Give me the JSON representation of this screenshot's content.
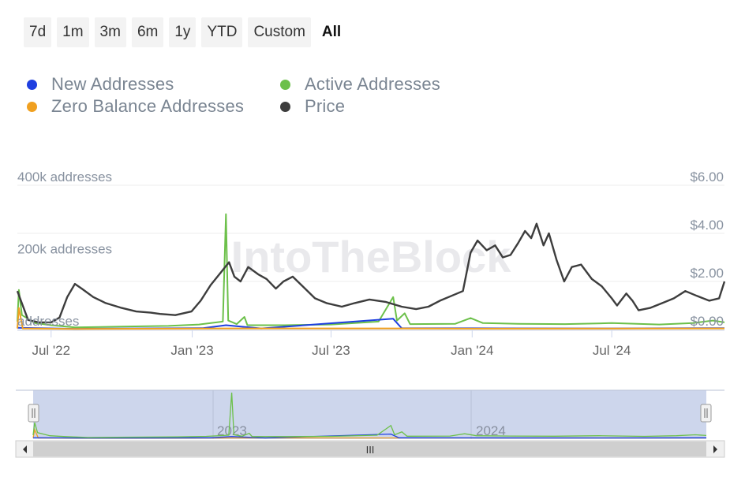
{
  "range_selector": {
    "buttons": [
      "7d",
      "1m",
      "3m",
      "6m",
      "1y",
      "YTD",
      "Custom",
      "All"
    ],
    "selected": "All"
  },
  "legend": [
    {
      "label": "New Addresses",
      "color": "#1f3fe0"
    },
    {
      "label": "Active Addresses",
      "color": "#6cc04a"
    },
    {
      "label": "Zero Balance Addresses",
      "color": "#f0a020"
    },
    {
      "label": "Price",
      "color": "#3d3d3d"
    }
  ],
  "watermark": "IntoTheBlock",
  "navigator": {
    "year_labels": [
      "2023",
      "2024"
    ],
    "scroll_grip": "III"
  },
  "chart_data": {
    "type": "line",
    "x_ticks": [
      "Jul '22",
      "Jan '23",
      "Jul '23",
      "Jan '24",
      "Jul '24"
    ],
    "left_axis": {
      "ticks": [
        "400k addresses",
        "200k addresses",
        "addresses"
      ],
      "range": [
        0,
        400000
      ]
    },
    "right_axis": {
      "ticks": [
        "$6.00",
        "$4.00",
        "$2.00",
        "$0.00"
      ],
      "range": [
        0,
        6
      ]
    },
    "x_range": [
      "2022-05-18",
      "2024-11-25"
    ],
    "series": [
      {
        "name": "Price",
        "axis": "right",
        "color": "#3d3d3d",
        "points": [
          [
            "2022-05-18",
            1.6
          ],
          [
            "2022-05-25",
            1.0
          ],
          [
            "2022-06-01",
            0.4
          ],
          [
            "2022-06-15",
            0.3
          ],
          [
            "2022-07-01",
            0.3
          ],
          [
            "2022-07-12",
            0.5
          ],
          [
            "2022-07-22",
            1.35
          ],
          [
            "2022-08-01",
            1.9
          ],
          [
            "2022-08-10",
            1.7
          ],
          [
            "2022-08-25",
            1.35
          ],
          [
            "2022-09-10",
            1.1
          ],
          [
            "2022-10-01",
            0.9
          ],
          [
            "2022-10-20",
            0.75
          ],
          [
            "2022-11-08",
            0.7
          ],
          [
            "2022-11-20",
            0.65
          ],
          [
            "2022-12-10",
            0.6
          ],
          [
            "2022-12-31",
            0.75
          ],
          [
            "2023-01-12",
            1.2
          ],
          [
            "2023-01-25",
            1.85
          ],
          [
            "2023-02-08",
            2.4
          ],
          [
            "2023-02-18",
            2.8
          ],
          [
            "2023-02-25",
            2.2
          ],
          [
            "2023-03-05",
            2.0
          ],
          [
            "2023-03-15",
            2.6
          ],
          [
            "2023-03-28",
            2.3
          ],
          [
            "2023-04-08",
            2.1
          ],
          [
            "2023-04-20",
            1.7
          ],
          [
            "2023-04-30",
            2.0
          ],
          [
            "2023-05-12",
            2.2
          ],
          [
            "2023-05-25",
            1.8
          ],
          [
            "2023-06-10",
            1.3
          ],
          [
            "2023-06-25",
            1.1
          ],
          [
            "2023-07-15",
            0.95
          ],
          [
            "2023-08-01",
            1.1
          ],
          [
            "2023-08-20",
            1.25
          ],
          [
            "2023-09-10",
            1.15
          ],
          [
            "2023-10-01",
            0.95
          ],
          [
            "2023-10-20",
            0.85
          ],
          [
            "2023-11-05",
            0.95
          ],
          [
            "2023-11-20",
            1.2
          ],
          [
            "2023-12-05",
            1.4
          ],
          [
            "2023-12-20",
            1.6
          ],
          [
            "2023-12-30",
            3.2
          ],
          [
            "2024-01-08",
            3.7
          ],
          [
            "2024-01-20",
            3.3
          ],
          [
            "2024-01-31",
            3.5
          ],
          [
            "2024-02-10",
            3.0
          ],
          [
            "2024-02-20",
            3.1
          ],
          [
            "2024-03-01",
            3.6
          ],
          [
            "2024-03-10",
            4.1
          ],
          [
            "2024-03-18",
            3.8
          ],
          [
            "2024-03-25",
            4.4
          ],
          [
            "2024-04-03",
            3.5
          ],
          [
            "2024-04-10",
            4.0
          ],
          [
            "2024-04-20",
            2.9
          ],
          [
            "2024-04-30",
            2.0
          ],
          [
            "2024-05-10",
            2.6
          ],
          [
            "2024-05-22",
            2.7
          ],
          [
            "2024-06-05",
            2.1
          ],
          [
            "2024-06-18",
            1.8
          ],
          [
            "2024-07-01",
            1.3
          ],
          [
            "2024-07-08",
            1.0
          ],
          [
            "2024-07-20",
            1.5
          ],
          [
            "2024-07-28",
            1.2
          ],
          [
            "2024-08-05",
            0.8
          ],
          [
            "2024-08-20",
            0.9
          ],
          [
            "2024-09-05",
            1.1
          ],
          [
            "2024-09-20",
            1.3
          ],
          [
            "2024-10-05",
            1.6
          ],
          [
            "2024-10-20",
            1.4
          ],
          [
            "2024-11-05",
            1.2
          ],
          [
            "2024-11-18",
            1.3
          ],
          [
            "2024-11-25",
            2.0
          ]
        ]
      },
      {
        "name": "Active Addresses",
        "axis": "left",
        "color": "#6cc04a",
        "points": [
          [
            "2022-05-18",
            22000
          ],
          [
            "2022-05-20",
            110000
          ],
          [
            "2022-05-24",
            40000
          ],
          [
            "2022-06-10",
            18000
          ],
          [
            "2022-07-01",
            12000
          ],
          [
            "2022-08-01",
            6000
          ],
          [
            "2022-10-01",
            8000
          ],
          [
            "2022-12-01",
            10000
          ],
          [
            "2023-01-10",
            14000
          ],
          [
            "2023-02-10",
            22000
          ],
          [
            "2023-02-14",
            320000
          ],
          [
            "2023-02-17",
            25000
          ],
          [
            "2023-02-28",
            15000
          ],
          [
            "2023-03-10",
            35000
          ],
          [
            "2023-03-14",
            12000
          ],
          [
            "2023-05-01",
            12000
          ],
          [
            "2023-07-01",
            14000
          ],
          [
            "2023-09-01",
            22000
          ],
          [
            "2023-09-20",
            90000
          ],
          [
            "2023-09-25",
            25000
          ],
          [
            "2023-10-05",
            45000
          ],
          [
            "2023-10-12",
            15000
          ],
          [
            "2023-12-10",
            16000
          ],
          [
            "2023-12-30",
            32000
          ],
          [
            "2024-01-15",
            18000
          ],
          [
            "2024-03-01",
            16000
          ],
          [
            "2024-05-01",
            15000
          ],
          [
            "2024-07-01",
            18000
          ],
          [
            "2024-09-01",
            14000
          ],
          [
            "2024-10-15",
            18000
          ],
          [
            "2024-11-10",
            25000
          ],
          [
            "2024-11-25",
            20000
          ]
        ]
      },
      {
        "name": "New Addresses",
        "axis": "left",
        "color": "#1f3fe0",
        "points": [
          [
            "2022-05-18",
            5000
          ],
          [
            "2022-08-01",
            2000
          ],
          [
            "2023-01-15",
            4000
          ],
          [
            "2023-02-14",
            12000
          ],
          [
            "2023-04-01",
            3000
          ],
          [
            "2023-09-20",
            30000
          ],
          [
            "2023-10-01",
            4000
          ],
          [
            "2024-01-01",
            3500
          ],
          [
            "2024-07-01",
            3000
          ],
          [
            "2024-11-25",
            4000
          ]
        ]
      },
      {
        "name": "Zero Balance Addresses",
        "axis": "left",
        "color": "#f0a020",
        "points": [
          [
            "2022-05-18",
            3000
          ],
          [
            "2022-05-20",
            60000
          ],
          [
            "2022-05-25",
            3000
          ],
          [
            "2022-08-01",
            1500
          ],
          [
            "2023-02-14",
            3000
          ],
          [
            "2023-09-20",
            3000
          ],
          [
            "2024-01-01",
            2500
          ],
          [
            "2024-11-25",
            3000
          ]
        ]
      }
    ]
  }
}
